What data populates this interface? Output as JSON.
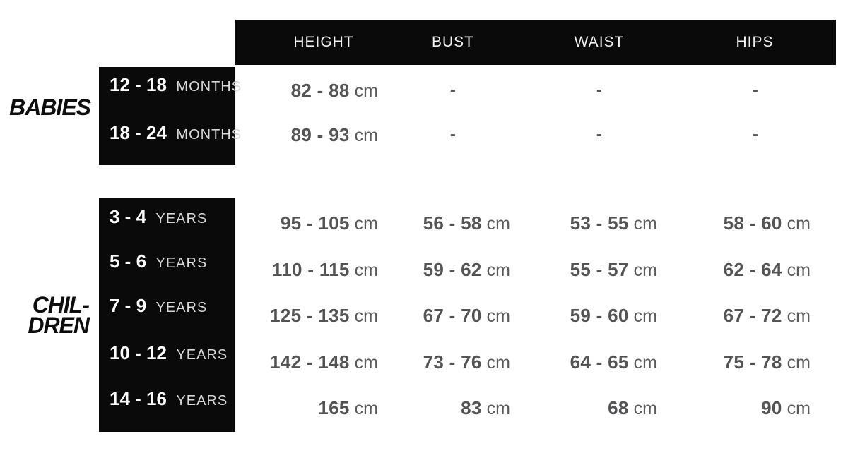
{
  "palette": {
    "background": "#ffffff",
    "block_black": "#0a0a0a",
    "header_text": "#f0f0f0",
    "age_unit_text": "#d6d6d6",
    "value_text": "#545456",
    "section_label_text": "#0d0d0d"
  },
  "chart_data": {
    "type": "table",
    "columns": [
      "HEIGHT",
      "BUST",
      "WAIST",
      "HIPS"
    ],
    "measurement_unit": "cm",
    "sections": [
      {
        "label": "BABIES",
        "label_lines": [
          "BABIES"
        ],
        "age_unit": "MONTHS",
        "rows": [
          {
            "age_range": "12 - 18",
            "age_unit": "MONTHS",
            "cells": [
              {
                "value": "82 - 88",
                "unit": "cm"
              },
              {
                "value": "-",
                "unit": ""
              },
              {
                "value": "-",
                "unit": ""
              },
              {
                "value": "-",
                "unit": ""
              }
            ]
          },
          {
            "age_range": "18 - 24",
            "age_unit": "MONTHS",
            "cells": [
              {
                "value": "89 - 93",
                "unit": "cm"
              },
              {
                "value": "-",
                "unit": ""
              },
              {
                "value": "-",
                "unit": ""
              },
              {
                "value": "-",
                "unit": ""
              }
            ]
          }
        ]
      },
      {
        "label": "CHILDREN",
        "label_lines": [
          "CHIL-",
          "DREN"
        ],
        "age_unit": "YEARS",
        "rows": [
          {
            "age_range": "3 - 4",
            "age_unit": "YEARS",
            "cells": [
              {
                "value": "95 - 105",
                "unit": "cm"
              },
              {
                "value": "56 - 58",
                "unit": "cm"
              },
              {
                "value": "53 - 55",
                "unit": "cm"
              },
              {
                "value": "58 - 60",
                "unit": "cm"
              }
            ]
          },
          {
            "age_range": "5 - 6",
            "age_unit": "YEARS",
            "cells": [
              {
                "value": "110 - 115",
                "unit": "cm"
              },
              {
                "value": "59 - 62",
                "unit": "cm"
              },
              {
                "value": "55 - 57",
                "unit": "cm"
              },
              {
                "value": "62 - 64",
                "unit": "cm"
              }
            ]
          },
          {
            "age_range": "7 - 9",
            "age_unit": "YEARS",
            "cells": [
              {
                "value": "125 - 135",
                "unit": "cm"
              },
              {
                "value": "67 - 70",
                "unit": "cm"
              },
              {
                "value": "59 - 60",
                "unit": "cm"
              },
              {
                "value": "67 - 72",
                "unit": "cm"
              }
            ]
          },
          {
            "age_range": "10 - 12",
            "age_unit": "YEARS",
            "cells": [
              {
                "value": "142 - 148",
                "unit": "cm"
              },
              {
                "value": "73 - 76",
                "unit": "cm"
              },
              {
                "value": "64 - 65",
                "unit": "cm"
              },
              {
                "value": "75 - 78",
                "unit": "cm"
              }
            ]
          },
          {
            "age_range": "14 - 16",
            "age_unit": "YEARS",
            "cells": [
              {
                "value": "165",
                "unit": "cm"
              },
              {
                "value": "83",
                "unit": "cm"
              },
              {
                "value": "68",
                "unit": "cm"
              },
              {
                "value": "90",
                "unit": "cm"
              }
            ]
          }
        ]
      }
    ]
  }
}
